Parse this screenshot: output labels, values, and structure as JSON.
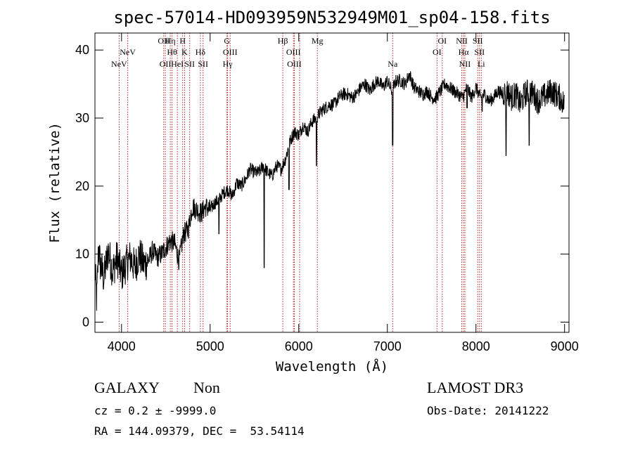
{
  "chart_data": {
    "type": "line",
    "title": "spec-57014-HD093959N532949M01_sp04-158.fits",
    "xlabel": "Wavelength (Å)",
    "ylabel": "Flux (relative)",
    "xlim": [
      3700,
      9050
    ],
    "ylim": [
      -1.5,
      42.5
    ],
    "x_ticks": [
      {
        "value": 4000,
        "label": "4000"
      },
      {
        "value": 5000,
        "label": "5000"
      },
      {
        "value": 6000,
        "label": "6000"
      },
      {
        "value": 7000,
        "label": "7000"
      },
      {
        "value": 8000,
        "label": "8000"
      },
      {
        "value": 9000,
        "label": "9000"
      }
    ],
    "y_ticks": [
      {
        "value": 0,
        "label": "0"
      },
      {
        "value": 10,
        "label": "10"
      },
      {
        "value": 20,
        "label": "20"
      },
      {
        "value": 30,
        "label": "30"
      },
      {
        "value": 40,
        "label": "40"
      }
    ],
    "series": [
      {
        "name": "spectrum",
        "x": [
          3700,
          3720,
          3740,
          3760,
          3800,
          3850,
          3900,
          3950,
          4000,
          4050,
          4100,
          4150,
          4200,
          4250,
          4300,
          4350,
          4400,
          4450,
          4500,
          4550,
          4600,
          4650,
          4700,
          4750,
          4800,
          4850,
          4900,
          4950,
          5000,
          5050,
          5100,
          5150,
          5200,
          5250,
          5300,
          5350,
          5400,
          5450,
          5500,
          5550,
          5600,
          5650,
          5700,
          5750,
          5800,
          5850,
          5900,
          5950,
          6000,
          6050,
          6100,
          6150,
          6200,
          6250,
          6300,
          6350,
          6400,
          6450,
          6500,
          6550,
          6600,
          6650,
          6700,
          6750,
          6800,
          6850,
          6900,
          6950,
          7000,
          7050,
          7100,
          7150,
          7200,
          7250,
          7300,
          7350,
          7400,
          7450,
          7500,
          7550,
          7600,
          7650,
          7700,
          7750,
          7800,
          7850,
          7900,
          7950,
          8000,
          8050,
          8100,
          8150,
          8200,
          8250,
          8300,
          8350,
          8400,
          8450,
          8500,
          8550,
          8600,
          8650,
          8700,
          8750,
          8800,
          8850,
          8900,
          8950,
          9000
        ],
        "y": [
          8.0,
          3.0,
          11.0,
          8.5,
          6.5,
          10.5,
          7.5,
          9.5,
          7.0,
          8.5,
          9.5,
          8.0,
          10.0,
          8.5,
          9.0,
          10.5,
          9.5,
          10.0,
          11.0,
          12.0,
          11.5,
          9.0,
          13.0,
          13.5,
          17.0,
          16.5,
          16.0,
          17.0,
          16.5,
          17.5,
          18.0,
          19.0,
          19.5,
          18.5,
          20.5,
          20.0,
          21.0,
          22.5,
          22.0,
          22.0,
          23.0,
          22.0,
          21.5,
          23.0,
          22.5,
          24.0,
          26.5,
          28.0,
          27.5,
          29.0,
          28.0,
          29.5,
          30.0,
          31.0,
          31.5,
          32.0,
          32.0,
          33.0,
          33.5,
          33.5,
          33.0,
          33.5,
          34.5,
          35.0,
          34.0,
          35.0,
          35.5,
          34.5,
          35.5,
          34.0,
          35.5,
          35.5,
          35.0,
          36.5,
          34.5,
          34.0,
          33.5,
          34.0,
          33.0,
          33.0,
          34.0,
          35.0,
          34.5,
          34.0,
          33.5,
          33.0,
          34.5,
          33.0,
          34.5,
          33.0,
          33.5,
          32.5,
          33.0,
          34.0,
          33.5,
          34.0,
          33.0,
          33.5,
          32.0,
          33.5,
          34.0,
          33.5,
          32.5,
          33.0,
          33.5,
          34.0,
          33.5,
          33.0,
          32.0
        ]
      },
      {
        "name": "absorption-dips",
        "x": [
          5100,
          5610,
          5890,
          6200,
          7060,
          7900,
          8070,
          8340,
          8600
        ],
        "y": [
          13.0,
          8.0,
          19.5,
          23.0,
          26.0,
          31.5,
          31.0,
          24.5,
          26.0
        ]
      }
    ],
    "lines": [
      {
        "wave": 3973,
        "label": "NeV",
        "row": 3
      },
      {
        "wave": 4070,
        "label": "NeV",
        "row": 2
      },
      {
        "wave": 4476,
        "label": "OII",
        "row": 1
      },
      {
        "wave": 4494,
        "label": "OII",
        "row": 3
      },
      {
        "wave": 4550,
        "label": "Hη",
        "row": 1
      },
      {
        "wave": 4570,
        "label": "Hθ",
        "row": 2
      },
      {
        "wave": 4630,
        "label": "HeI",
        "row": 3
      },
      {
        "wave": 4690,
        "label": "H",
        "row": 1
      },
      {
        "wave": 4712,
        "label": "K",
        "row": 2
      },
      {
        "wave": 4769,
        "label": "SII",
        "row": 3
      },
      {
        "wave": 4890,
        "label": "Hδ",
        "row": 2
      },
      {
        "wave": 4920,
        "label": "SII",
        "row": 3
      },
      {
        "wave": 5190,
        "label": "G",
        "row": 1
      },
      {
        "wave": 5197,
        "label": "Hγ",
        "row": 3
      },
      {
        "wave": 5226,
        "label": "OIII",
        "row": 2
      },
      {
        "wave": 5820,
        "label": "Hβ",
        "row": 1
      },
      {
        "wave": 5940,
        "label": "OIII",
        "row": 2
      },
      {
        "wave": 5950,
        "label": "OIII",
        "row": 3
      },
      {
        "wave": 6010,
        "label": "",
        "row": 0
      },
      {
        "wave": 6210,
        "label": "Mg",
        "row": 1
      },
      {
        "wave": 7060,
        "label": "Na",
        "row": 3
      },
      {
        "wave": 7560,
        "label": "OI",
        "row": 2
      },
      {
        "wave": 7620,
        "label": "OI",
        "row": 1
      },
      {
        "wave": 7840,
        "label": "NII",
        "row": 1
      },
      {
        "wave": 7860,
        "label": "Hα",
        "row": 2
      },
      {
        "wave": 7875,
        "label": "NII",
        "row": 3
      },
      {
        "wave": 8020,
        "label": "SII",
        "row": 1
      },
      {
        "wave": 8040,
        "label": "SII",
        "row": 2
      },
      {
        "wave": 8060,
        "label": "Li",
        "row": 3
      }
    ]
  },
  "footer": {
    "object_class": "GALAXY",
    "subclass": "Non",
    "survey": "LAMOST DR3",
    "cz": "cz = 0.2 ± -9999.0",
    "obs_date": "Obs-Date: 20141222",
    "coords": "RA = 144.09379, DEC =  53.54114"
  }
}
